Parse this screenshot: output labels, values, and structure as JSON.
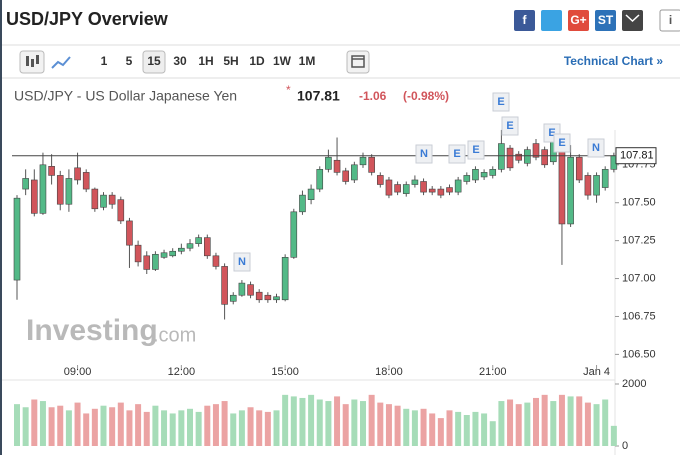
{
  "header": {
    "title": "USD/JPY Overview",
    "share_labels": [
      "f",
      "G+",
      "ST",
      "i"
    ]
  },
  "toolbar": {
    "intervals": [
      "1",
      "5",
      "15",
      "30",
      "1H",
      "5H",
      "1D",
      "1W",
      "1M"
    ],
    "technical_link": "Technical Chart »"
  },
  "watermark": "Investing",
  "watermark_suffix": ".com",
  "chart_data": {
    "type": "candlestick",
    "title": "USD/JPY - US Dollar Japanese Yen",
    "last_price": 107.81,
    "change": -1.06,
    "change_percent": {
      "value": -0.98,
      "label": "(-0.98%)"
    },
    "up_color": "#53b987",
    "down_color": "#d1555b",
    "categories": [
      null,
      null,
      null,
      null,
      null,
      null,
      null,
      "09:00",
      null,
      null,
      null,
      null,
      null,
      null,
      null,
      null,
      null,
      null,
      null,
      "12:00",
      null,
      null,
      null,
      null,
      null,
      null,
      null,
      null,
      null,
      null,
      null,
      "15:00",
      null,
      null,
      null,
      null,
      null,
      null,
      null,
      null,
      null,
      null,
      null,
      "18:00",
      null,
      null,
      null,
      null,
      null,
      null,
      null,
      null,
      null,
      null,
      null,
      "21:00",
      null,
      null,
      null,
      null,
      null,
      null,
      null,
      null,
      null,
      null,
      null,
      "Jan 4",
      null,
      null
    ],
    "open": [
      106.99,
      107.59,
      107.65,
      107.43,
      107.74,
      107.68,
      107.49,
      107.73,
      107.7,
      107.59,
      107.47,
      107.55,
      107.52,
      107.38,
      107.22,
      107.15,
      107.06,
      107.14,
      107.15,
      107.18,
      107.2,
      107.23,
      107.27,
      107.15,
      107.08,
      106.85,
      106.89,
      106.96,
      106.91,
      106.89,
      106.86,
      106.86,
      107.14,
      107.44,
      107.52,
      107.59,
      107.72,
      107.78,
      107.71,
      107.65,
      107.75,
      107.8,
      107.68,
      107.65,
      107.62,
      107.56,
      107.62,
      107.64,
      107.59,
      107.59,
      107.6,
      107.57,
      107.64,
      107.65,
      107.67,
      107.68,
      107.72,
      107.86,
      107.82,
      107.76,
      107.89,
      107.85,
      107.77,
      107.85,
      107.36,
      107.8,
      107.68,
      107.55,
      107.6,
      107.72
    ],
    "high": [
      107.55,
      107.72,
      107.72,
      107.83,
      107.82,
      107.71,
      107.72,
      107.83,
      107.72,
      107.6,
      107.57,
      107.57,
      107.54,
      107.4,
      107.25,
      107.18,
      107.18,
      107.19,
      107.2,
      107.23,
      107.26,
      107.29,
      107.29,
      107.17,
      107.1,
      106.91,
      106.99,
      106.98,
      106.93,
      106.91,
      106.9,
      107.16,
      107.46,
      107.58,
      107.62,
      107.74,
      107.85,
      107.93,
      107.73,
      107.77,
      107.83,
      107.82,
      107.7,
      107.67,
      107.64,
      107.64,
      107.68,
      107.66,
      107.61,
      107.61,
      107.62,
      107.67,
      107.7,
      107.74,
      107.72,
      107.74,
      107.98,
      107.88,
      107.84,
      107.87,
      107.92,
      107.87,
      107.96,
      107.87,
      107.88,
      107.82,
      107.7,
      107.7,
      107.74,
      107.83
    ],
    "low": [
      106.86,
      107.55,
      107.41,
      107.42,
      107.62,
      107.45,
      107.44,
      107.62,
      107.57,
      107.44,
      107.45,
      107.46,
      107.36,
      107.07,
      107.08,
      107.03,
      107.05,
      107.13,
      107.14,
      107.16,
      107.18,
      107.21,
      107.13,
      107.06,
      106.73,
      106.83,
      106.88,
      106.87,
      106.84,
      106.84,
      106.84,
      106.85,
      107.13,
      107.42,
      107.49,
      107.57,
      107.7,
      107.68,
      107.62,
      107.63,
      107.73,
      107.68,
      107.6,
      107.53,
      107.55,
      107.54,
      107.6,
      107.55,
      107.55,
      107.53,
      107.55,
      107.55,
      107.62,
      107.63,
      107.65,
      107.66,
      107.7,
      107.71,
      107.76,
      107.74,
      107.78,
      107.73,
      107.75,
      107.09,
      107.34,
      107.63,
      107.52,
      107.5,
      107.58,
      107.7
    ],
    "close": [
      107.53,
      107.66,
      107.43,
      107.75,
      107.68,
      107.49,
      107.66,
      107.65,
      107.59,
      107.46,
      107.55,
      107.49,
      107.38,
      107.22,
      107.11,
      107.06,
      107.16,
      107.17,
      107.18,
      107.2,
      107.23,
      107.27,
      107.15,
      107.08,
      106.83,
      106.89,
      106.97,
      106.89,
      106.86,
      106.86,
      106.88,
      107.14,
      107.44,
      107.55,
      107.59,
      107.72,
      107.8,
      107.7,
      107.64,
      107.75,
      107.8,
      107.7,
      107.62,
      107.55,
      107.57,
      107.62,
      107.65,
      107.57,
      107.57,
      107.55,
      107.57,
      107.65,
      107.68,
      107.72,
      107.7,
      107.72,
      107.89,
      107.73,
      107.78,
      107.85,
      107.8,
      107.75,
      107.9,
      107.36,
      107.8,
      107.65,
      107.55,
      107.68,
      107.72,
      107.81
    ],
    "ylim": [
      106.43,
      108.23
    ],
    "yticks": [
      {
        "value": 106.5,
        "label": "106.50"
      },
      106.75,
      {
        "value": 107,
        "label": "107.00"
      },
      107.25,
      {
        "value": 107.5,
        "label": "107.50"
      },
      107.75
    ],
    "grid": false,
    "events": [
      "N",
      "N",
      "E",
      "E",
      "E",
      "E",
      "E",
      "E",
      "N"
    ],
    "volume": {
      "values": [
        1350,
        1250,
        1500,
        1450,
        1250,
        1300,
        1150,
        1400,
        1050,
        1200,
        1300,
        1250,
        1400,
        1150,
        1350,
        1100,
        1300,
        1150,
        1050,
        1150,
        1200,
        1100,
        1300,
        1350,
        1450,
        1050,
        1150,
        1250,
        1150,
        1100,
        1150,
        1650,
        1600,
        1550,
        1650,
        1500,
        1450,
        1600,
        1350,
        1500,
        1450,
        1650,
        1400,
        1350,
        1300,
        1200,
        1150,
        1200,
        1050,
        900,
        1150,
        1100,
        1000,
        1100,
        1050,
        800,
        1450,
        1500,
        1350,
        1400,
        1550,
        1650,
        1450,
        1650,
        1600,
        1600,
        1400,
        1350,
        1500,
        650
      ],
      "up_color": "#a6dcb8",
      "down_color": "#eba3a3",
      "ylim": [
        0,
        2000
      ],
      "yticks": [
        0,
        2000
      ]
    }
  }
}
